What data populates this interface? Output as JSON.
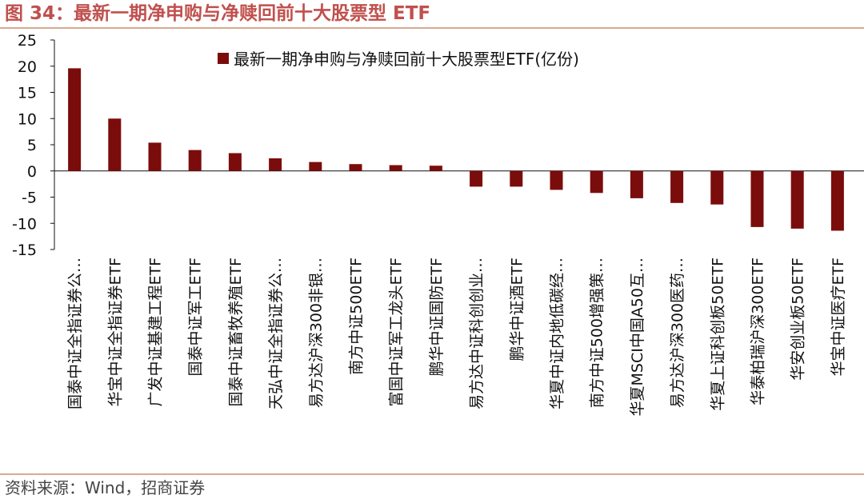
{
  "figure": {
    "title": "图 34：最新一期净申购与净赎回前十大股票型 ETF",
    "source": "资料来源：Wind，招商证券"
  },
  "colors": {
    "title": "#c0504d",
    "bar": "#7b0c0c",
    "rule": "#d9a98f"
  },
  "chart_data": {
    "type": "bar",
    "title": "",
    "xlabel": "",
    "ylabel": "",
    "ylim": [
      -15,
      25
    ],
    "yticks": [
      25,
      20,
      15,
      10,
      5,
      0,
      -5,
      -10,
      -15
    ],
    "grid": false,
    "legend_position": "top",
    "categories": [
      "国泰中证全指证券公…",
      "华宝中证全指证券ETF",
      "广发中证基建工程ETF",
      "国泰中证军工ETF",
      "国泰中证畜牧养殖ETF",
      "天弘中证全指证券公…",
      "易方达沪深300非银…",
      "南方中证500ETF",
      "富国中证军工龙头ETF",
      "鹏华中证国防ETF",
      "易方达中证科创创业…",
      "鹏华中证酒ETF",
      "华夏中证内地低碳经…",
      "南方中证500增强策…",
      "华夏MSCI中国A50互…",
      "易方达沪深300医药…",
      "华夏上证科创板50ETF",
      "华泰柏瑞沪深300ETF",
      "华安创业板50ETF",
      "华宝中证医疗ETF"
    ],
    "series": [
      {
        "name": "最新一期净申购与净赎回前十大股票型ETF(亿份)",
        "values": [
          19.6,
          10.0,
          5.4,
          4.0,
          3.4,
          2.4,
          1.7,
          1.3,
          1.1,
          1.0,
          -3.0,
          -3.0,
          -3.6,
          -4.2,
          -5.2,
          -6.1,
          -6.4,
          -10.7,
          -11.0,
          -11.4
        ]
      }
    ]
  }
}
